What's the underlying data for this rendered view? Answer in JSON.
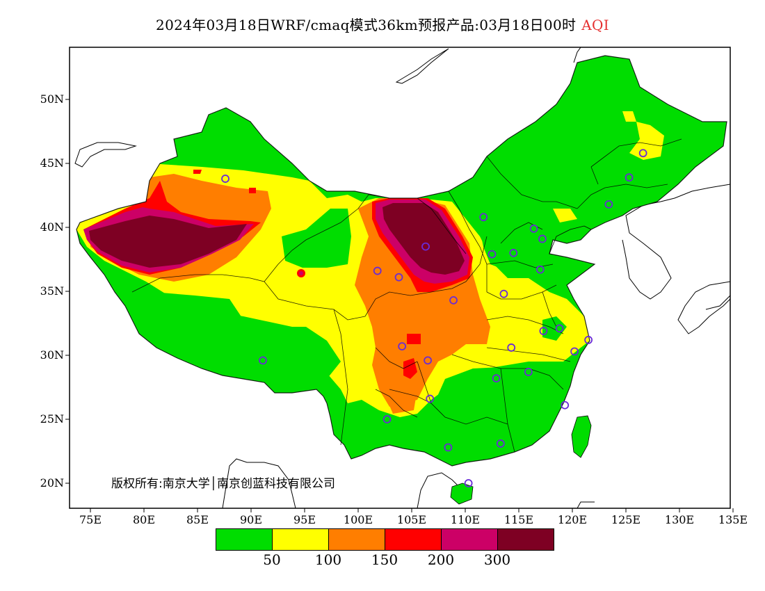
{
  "title": {
    "main": "2024年03月18日WRF/cmaq模式36km预报产品:03月18日00时",
    "variable": "AQI"
  },
  "map": {
    "lat_ticks": [
      "50N",
      "45N",
      "40N",
      "35N",
      "30N",
      "25N",
      "20N"
    ],
    "lon_ticks": [
      "75E",
      "80E",
      "85E",
      "90E",
      "95E",
      "100E",
      "105E",
      "110E",
      "115E",
      "120E",
      "125E",
      "130E",
      "135E"
    ],
    "extent": {
      "lon_min": 73,
      "lon_max": 135,
      "lat_min": 18,
      "lat_max": 54
    }
  },
  "copyright": "版权所有:南京大学│南京创蓝科技有限公司",
  "legend": {
    "colors": [
      "#00dd00",
      "#ffff00",
      "#ff7e00",
      "#ff0000",
      "#cc0066",
      "#7e0023"
    ],
    "labels": [
      "50",
      "100",
      "150",
      "200",
      "300"
    ]
  },
  "stations": [
    {
      "lon": 87.6,
      "lat": 43.8
    },
    {
      "lon": 91.1,
      "lat": 29.6
    },
    {
      "lon": 101.8,
      "lat": 36.6
    },
    {
      "lon": 103.8,
      "lat": 36.1
    },
    {
      "lon": 106.3,
      "lat": 38.5
    },
    {
      "lon": 108.9,
      "lat": 34.3
    },
    {
      "lon": 104.1,
      "lat": 30.7
    },
    {
      "lon": 106.5,
      "lat": 29.6
    },
    {
      "lon": 106.7,
      "lat": 26.6
    },
    {
      "lon": 102.7,
      "lat": 25.0
    },
    {
      "lon": 108.4,
      "lat": 22.8
    },
    {
      "lon": 110.3,
      "lat": 20.0
    },
    {
      "lon": 113.3,
      "lat": 23.1
    },
    {
      "lon": 112.9,
      "lat": 28.2
    },
    {
      "lon": 114.3,
      "lat": 30.6
    },
    {
      "lon": 115.9,
      "lat": 28.7
    },
    {
      "lon": 117.3,
      "lat": 31.9
    },
    {
      "lon": 118.8,
      "lat": 32.1
    },
    {
      "lon": 120.2,
      "lat": 30.3
    },
    {
      "lon": 121.5,
      "lat": 31.2
    },
    {
      "lon": 119.3,
      "lat": 26.1
    },
    {
      "lon": 113.6,
      "lat": 34.8
    },
    {
      "lon": 117.0,
      "lat": 36.7
    },
    {
      "lon": 114.5,
      "lat": 38.0
    },
    {
      "lon": 112.5,
      "lat": 37.9
    },
    {
      "lon": 111.7,
      "lat": 40.8
    },
    {
      "lon": 116.4,
      "lat": 39.9
    },
    {
      "lon": 117.2,
      "lat": 39.1
    },
    {
      "lon": 123.4,
      "lat": 41.8
    },
    {
      "lon": 125.3,
      "lat": 43.9
    },
    {
      "lon": 126.6,
      "lat": 45.8
    }
  ]
}
